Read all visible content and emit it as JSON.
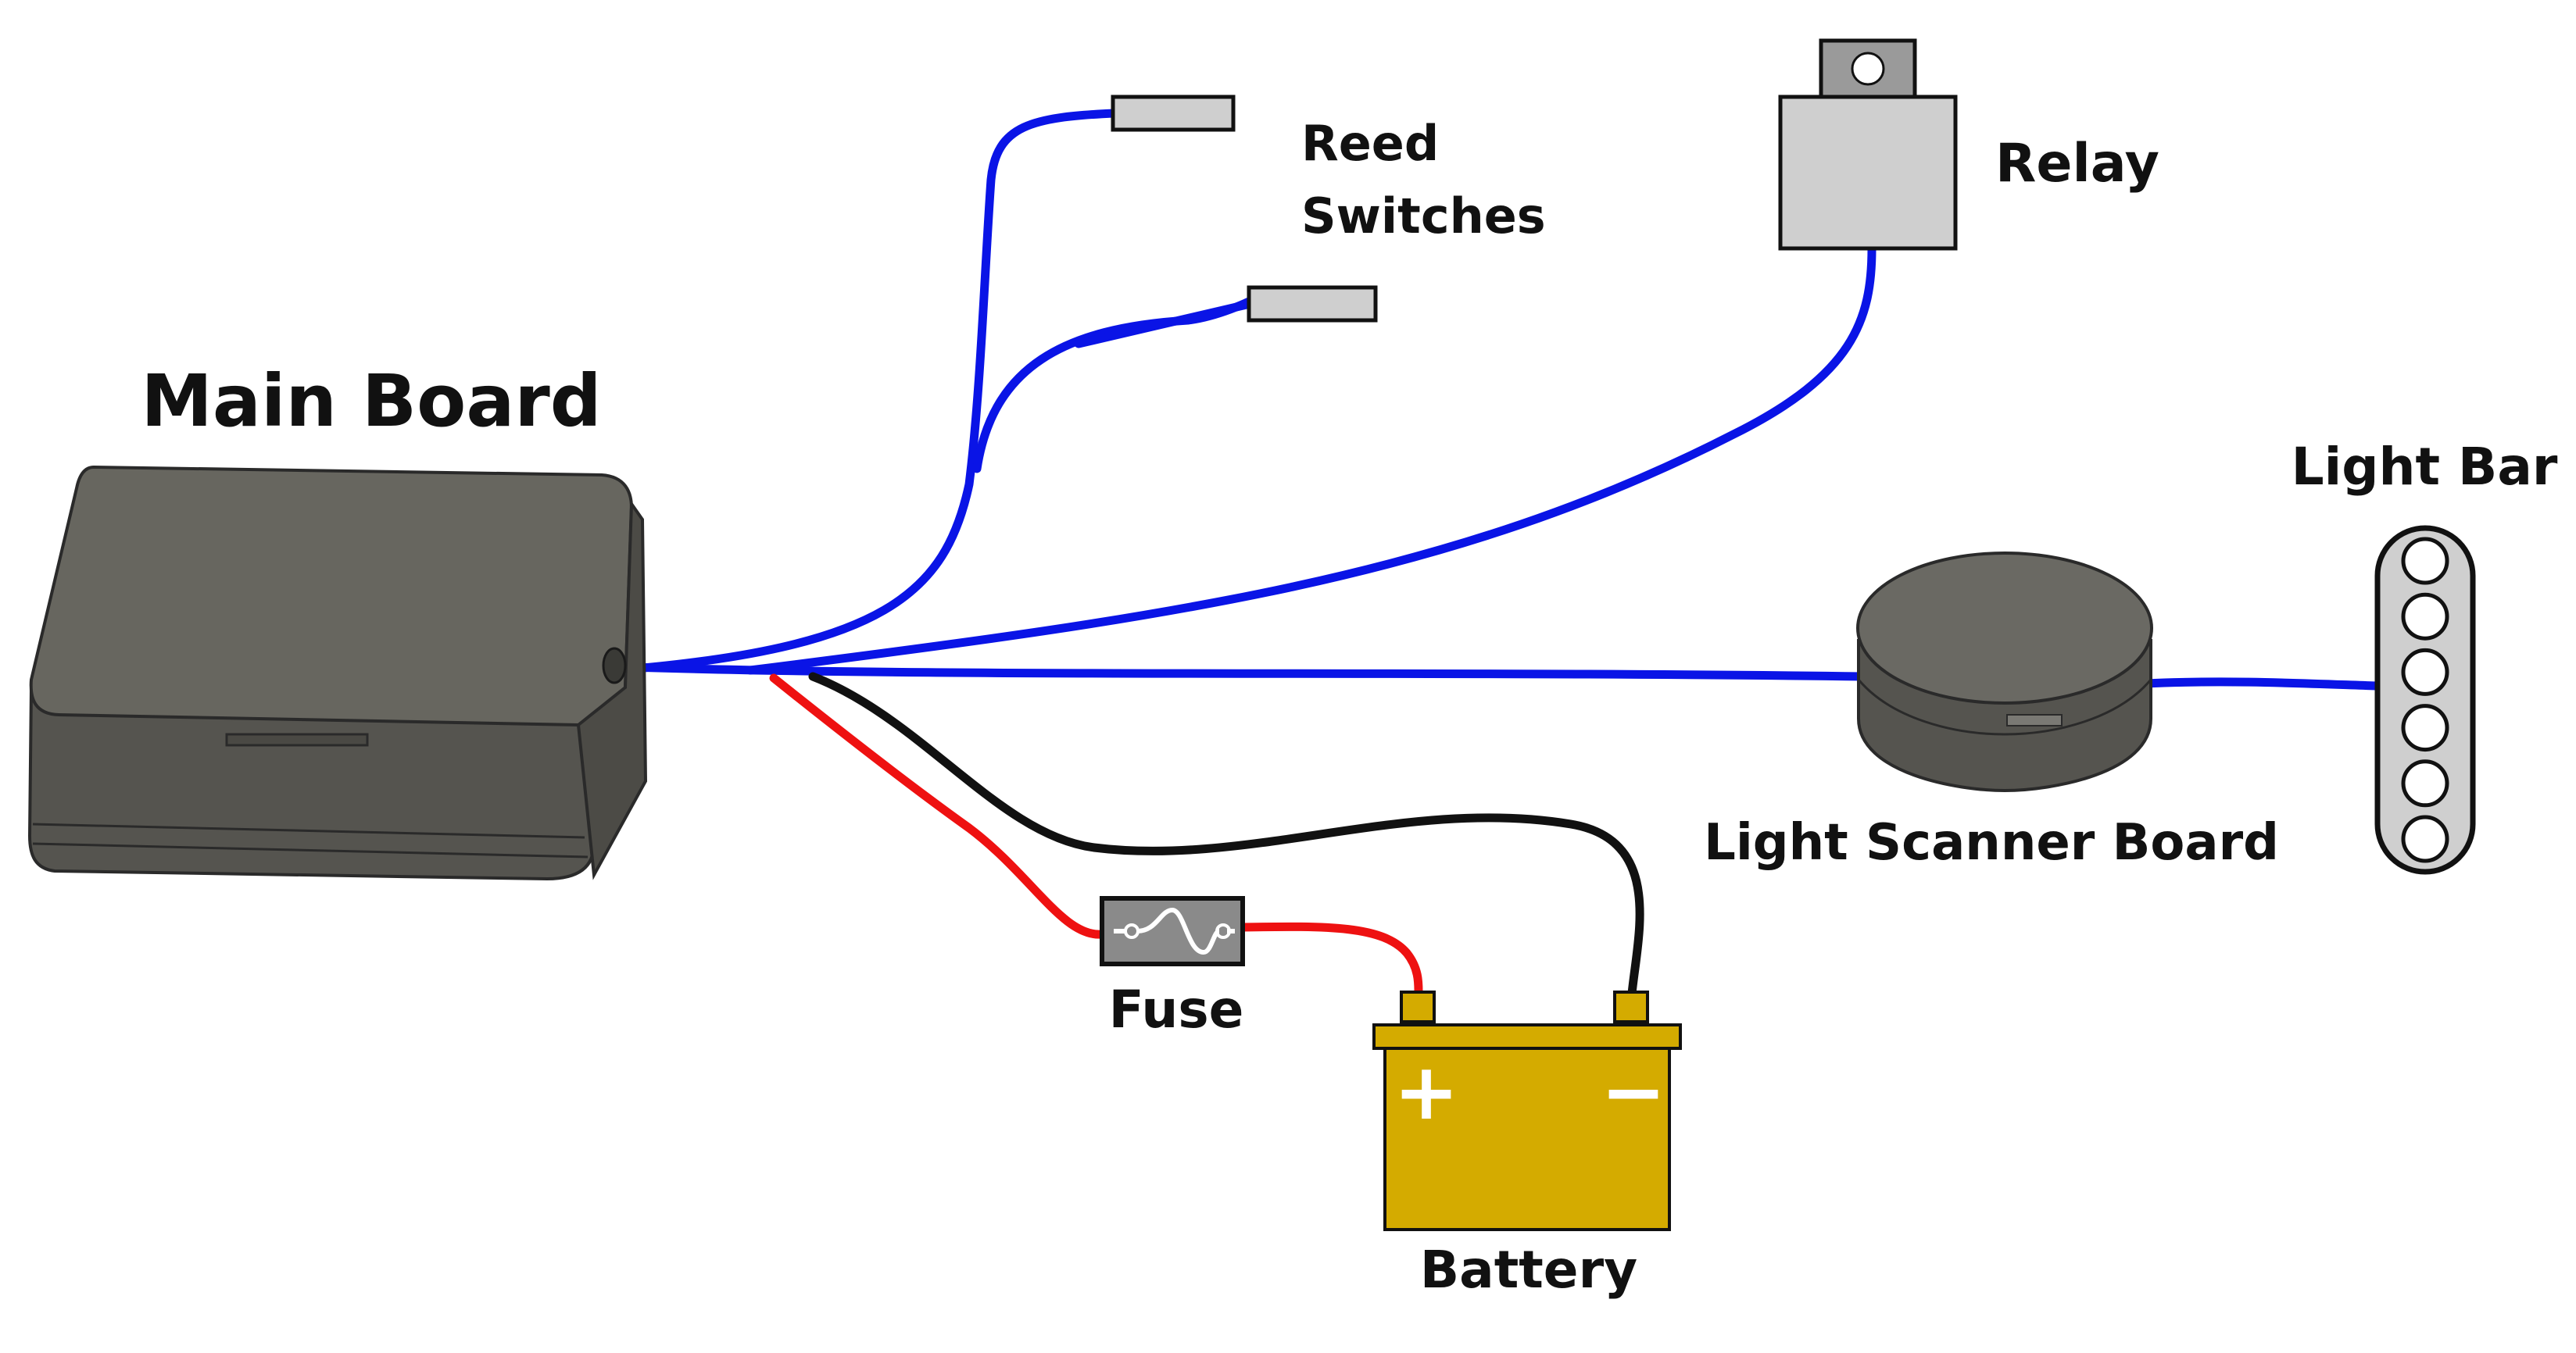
{
  "labels": {
    "main_board": "Main Board",
    "reed_switches_line1": "Reed",
    "reed_switches_line2": "Switches",
    "relay": "Relay",
    "light_bar": "Light Bar",
    "light_scanner_board": "Light Scanner Board",
    "fuse": "Fuse",
    "battery": "Battery",
    "battery_positive": "+",
    "battery_negative": "−"
  },
  "light_bar_led_count": 6,
  "colors": {
    "signal_wire": "#0a14e6",
    "positive_wire": "#ee1111",
    "negative_wire": "#111111",
    "battery": "#d4ab00",
    "enclosure": "#5f5e5a",
    "component_gray": "#cfcfcf"
  },
  "icons": {
    "fuse": "fuse-icon",
    "battery": "battery-icon",
    "relay": "relay-icon",
    "reed_switch": "reed-switch-icon",
    "light_bar": "light-bar-icon"
  }
}
